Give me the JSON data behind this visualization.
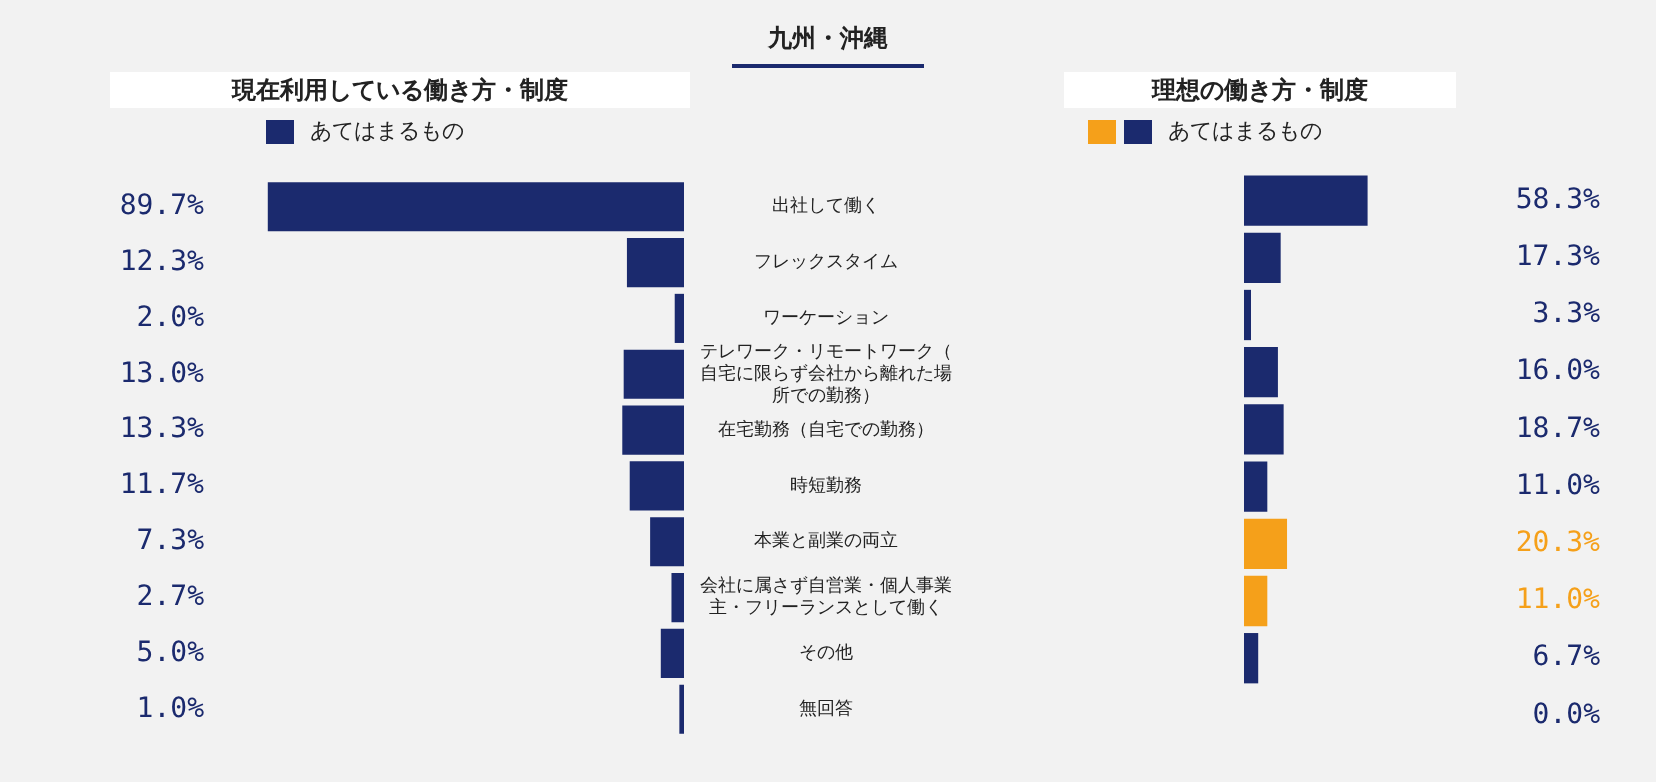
{
  "chart_data": [
    {
      "type": "other",
      "title": "九州・沖縄"
    },
    {
      "type": "bar",
      "orientation": "horizontal",
      "title": "現在利用している働き方・制度",
      "categories": [
        "出社して働く",
        "フレックスタイム",
        "ワーケーション",
        "テレワーク・リモートワーク（自宅に限らず会社から離れた場所での勤務）",
        "在宅勤務（自宅での勤務）",
        "時短勤務",
        "本業と副業の両立",
        "会社に属さず自営業・個人事業主・フリーランスとして働く",
        "その他",
        "無回答"
      ],
      "series": [
        {
          "name": "あてはまるもの",
          "colors": [
            "#1b2a6e",
            "#1b2a6e",
            "#1b2a6e",
            "#1b2a6e",
            "#1b2a6e",
            "#1b2a6e",
            "#1b2a6e",
            "#1b2a6e",
            "#1b2a6e",
            "#1b2a6e"
          ],
          "values": [
            89.7,
            12.3,
            2.0,
            13.0,
            13.3,
            11.7,
            7.3,
            2.7,
            5.0,
            1.0
          ],
          "value_labels": [
            "89.7%",
            "12.3%",
            "2.0%",
            "13.0%",
            "13.3%",
            "11.7%",
            "7.3%",
            "2.7%",
            "5.0%",
            "1.0%"
          ]
        }
      ],
      "legend": "top left",
      "tick_labels": "y"
    },
    {
      "type": "bar",
      "orientation": "horizontal",
      "title": "理想の働き方・制度",
      "categories": [
        null,
        null,
        null,
        null,
        null,
        null,
        null,
        null,
        null,
        null
      ],
      "series": [
        {
          "name": "あてはまるもの",
          "colors": [
            "#1b2a6e",
            "#1b2a6e",
            "#1b2a6e",
            "#1b2a6e",
            "#1b2a6e",
            "#1b2a6e",
            "#f5a01a",
            "#f5a01a",
            "#1b2a6e",
            "#1b2a6e"
          ],
          "values": [
            58.3,
            17.3,
            3.3,
            16.0,
            18.7,
            11.0,
            20.3,
            11.0,
            6.7,
            0.0
          ],
          "value_labels": [
            "58.3%",
            "17.3%",
            "3.3%",
            "16.0%",
            "18.7%",
            "11.0%",
            "20.3%",
            "11.0%",
            "6.7%",
            "0.0%"
          ]
        }
      ],
      "legend": "top left",
      "tick_labels": false
    }
  ]
}
